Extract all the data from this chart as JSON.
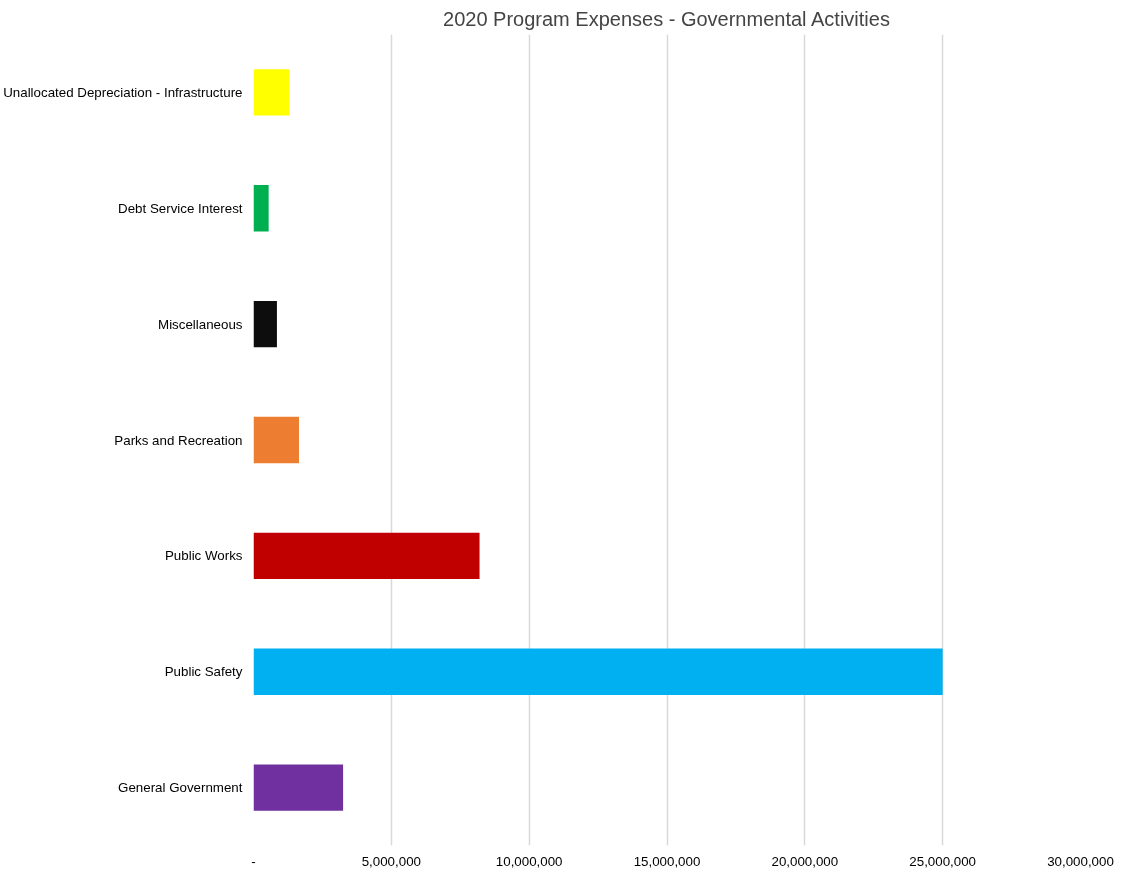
{
  "chart_data": {
    "type": "bar",
    "orientation": "horizontal",
    "title": "2020 Program Expenses - Governmental Activities",
    "categories": [
      "Unallocated Depreciation - Infrastructure",
      "Debt Service Interest",
      "Miscellaneous",
      "Parks and Recreation",
      "Public Works",
      "Public Safety",
      "General Government"
    ],
    "values": [
      1300000,
      550000,
      850000,
      1650000,
      8200000,
      25000000,
      3250000
    ],
    "colors": [
      "#ffff00",
      "#00b050",
      "#0d0d0d",
      "#ed7d31",
      "#c00000",
      "#00b0f0",
      "#7030a0"
    ],
    "xlim": [
      0,
      30000000
    ],
    "xticks": [
      {
        "value": 0,
        "label": "-"
      },
      {
        "value": 5000000,
        "label": "5,000,000"
      },
      {
        "value": 10000000,
        "label": "10,000,000"
      },
      {
        "value": 15000000,
        "label": "15,000,000"
      },
      {
        "value": 20000000,
        "label": "20,000,000"
      },
      {
        "value": 25000000,
        "label": "25,000,000"
      },
      {
        "value": 30000000,
        "label": "30,000,000"
      }
    ],
    "grid": "x"
  }
}
